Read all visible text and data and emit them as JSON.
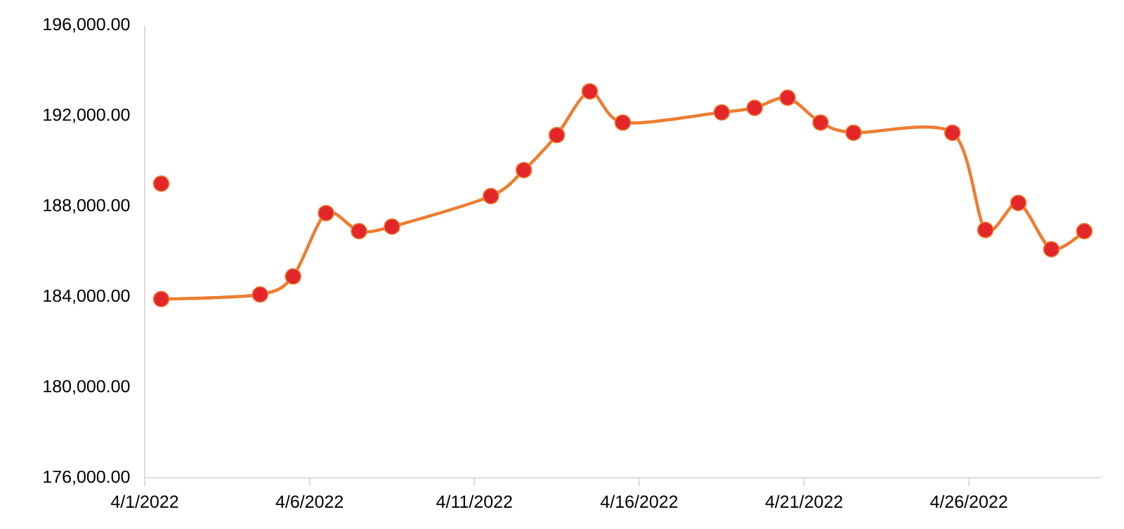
{
  "chart_data": {
    "type": "line",
    "marker": "circle",
    "series": [
      {
        "color": "#ed7d31",
        "x": [
          "2022-04-01T12:00",
          "2022-04-04T12:00",
          "2022-04-05T12:00",
          "2022-04-06T12:00",
          "2022-04-07T12:00",
          "2022-04-08T12:00",
          "2022-04-11T12:00",
          "2022-04-12T12:00",
          "2022-04-13T12:00",
          "2022-04-14T12:00",
          "2022-04-15T12:00",
          "2022-04-18T12:00",
          "2022-04-19T12:00",
          "2022-04-20T12:00",
          "2022-04-21T12:00",
          "2022-04-22T12:00",
          "2022-04-25T12:00",
          "2022-04-26T12:00",
          "2022-04-27T12:00",
          "2022-04-28T12:00",
          "2022-04-29T12:00"
        ],
        "values": [
          183900,
          184100,
          184900,
          187700,
          186900,
          187100,
          188450,
          189600,
          191150,
          193080,
          191700,
          192150,
          192350,
          192800,
          191700,
          191250,
          191250,
          186950,
          188150,
          186100,
          186900
        ]
      },
      {
        "type": "scatter",
        "color": "#e3262a",
        "x": [
          "2022-04-01T12:00"
        ],
        "values": [
          189000
        ]
      }
    ],
    "xlim": [
      "2022-04-01",
      "2022-04-30"
    ],
    "xticks": [
      {
        "value": "2022-04-01",
        "label": "4/1/2022"
      },
      {
        "value": "2022-04-06",
        "label": "4/6/2022"
      },
      {
        "value": "2022-04-11",
        "label": "4/11/2022"
      },
      {
        "value": "2022-04-16",
        "label": "4/16/2022"
      },
      {
        "value": "2022-04-21",
        "label": "4/21/2022"
      },
      {
        "value": "2022-04-26",
        "label": "4/26/2022"
      }
    ],
    "ylim": [
      176000,
      196000
    ],
    "yticks": [
      {
        "value": 176000,
        "label": "176,000.00"
      },
      {
        "value": 180000,
        "label": "180,000.00"
      },
      {
        "value": 184000,
        "label": "184,000.00"
      },
      {
        "value": 188000,
        "label": "188,000.00"
      },
      {
        "value": 192000,
        "label": "192,000.00"
      },
      {
        "value": 196000,
        "label": "196,000.00"
      }
    ]
  }
}
